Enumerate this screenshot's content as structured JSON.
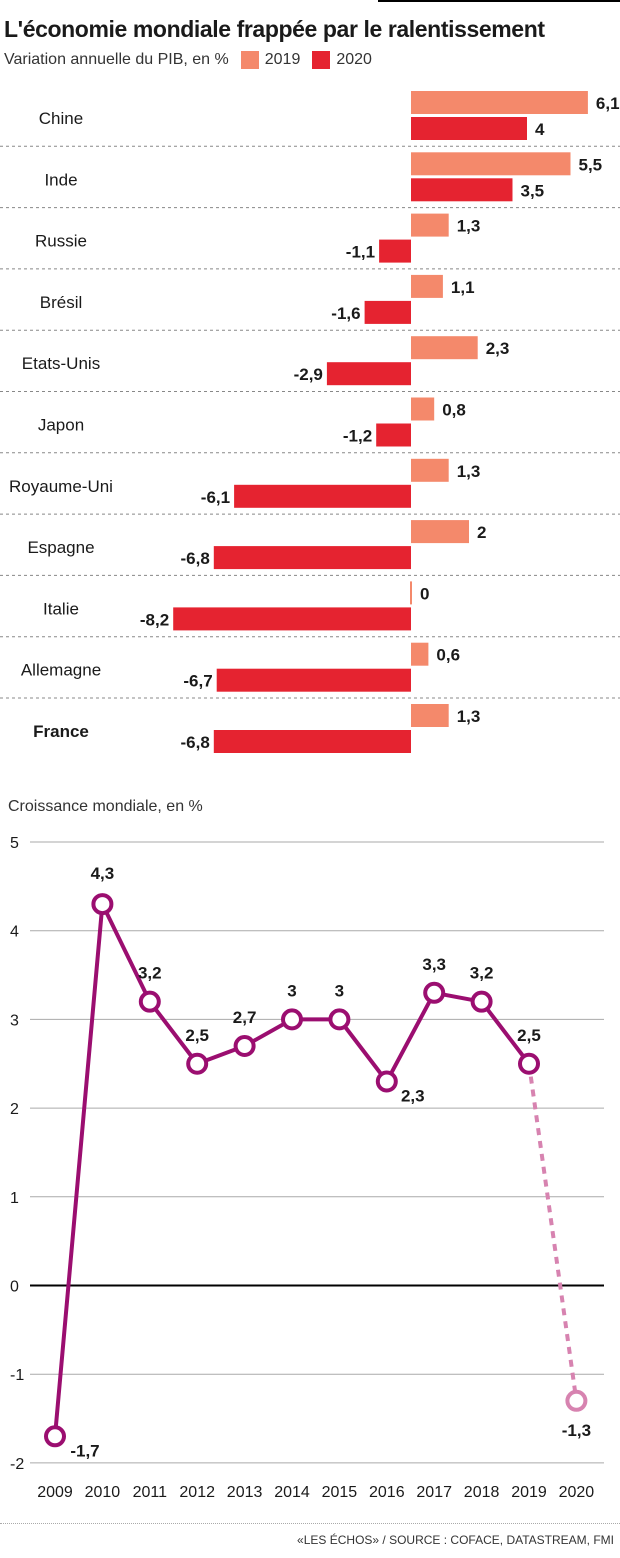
{
  "header": {
    "title": "L'économie mondiale frappée par le ralentissement",
    "subtitle": "Variation annuelle du PIB, en %",
    "legend_2019": "2019",
    "legend_2020": "2020"
  },
  "colors": {
    "c2019": "#f4896b",
    "c2020": "#e52330",
    "line": "#9b0e70",
    "line_forecast": "#d783b0"
  },
  "chart_data": [
    {
      "type": "bar",
      "orientation": "horizontal",
      "title": "L'économie mondiale frappée par le ralentissement",
      "subtitle": "Variation annuelle du PIB, en %",
      "categories": [
        "Chine",
        "Inde",
        "Russie",
        "Brésil",
        "Etats-Unis",
        "Japon",
        "Royaume-Uni",
        "Espagne",
        "Italie",
        "Allemagne",
        "France"
      ],
      "series": [
        {
          "name": "2019",
          "values": [
            6.1,
            5.5,
            1.3,
            1.1,
            2.3,
            0.8,
            1.3,
            2,
            0,
            0.6,
            1.3
          ],
          "labels": [
            "6,1",
            "5,5",
            "1,3",
            "1,1",
            "2,3",
            "0,8",
            "1,3",
            "2",
            "0",
            "0,6",
            "1,3"
          ]
        },
        {
          "name": "2020",
          "values": [
            4,
            3.5,
            -1.1,
            -1.6,
            -2.9,
            -1.2,
            -6.1,
            -6.8,
            -8.2,
            -6.7,
            -6.8
          ],
          "labels": [
            "4",
            "3,5",
            "-1,1",
            "-1,6",
            "-2,9",
            "-1,2",
            "-6,1",
            "-6,8",
            "-8,2",
            "-6,7",
            "-6,8"
          ]
        }
      ],
      "highlight_category": "France",
      "legend": "top"
    },
    {
      "type": "line",
      "title": "Croissance mondiale, en %",
      "x": [
        "2009",
        "2010",
        "2011",
        "2012",
        "2013",
        "2014",
        "2015",
        "2016",
        "2017",
        "2018",
        "2019",
        "2020"
      ],
      "y": [
        -1.7,
        4.3,
        3.2,
        2.5,
        2.7,
        3,
        3,
        2.3,
        3.3,
        3.2,
        2.5,
        -1.3
      ],
      "point_labels": [
        "-1,7",
        "4,3",
        "3,2",
        "2,5",
        "2,7",
        "3",
        "3",
        "2,3",
        "3,3",
        "3,2",
        "2,5",
        "-1,3"
      ],
      "forecast_from": "2019",
      "yticks": [
        "5",
        "4",
        "3",
        "2",
        "1",
        "0",
        "-1",
        "-2"
      ],
      "ylim": [
        -2,
        5
      ],
      "grid": true
    }
  ],
  "footer": {
    "source": "«LES ÉCHOS» / SOURCE : COFACE, DATASTREAM, FMI"
  }
}
